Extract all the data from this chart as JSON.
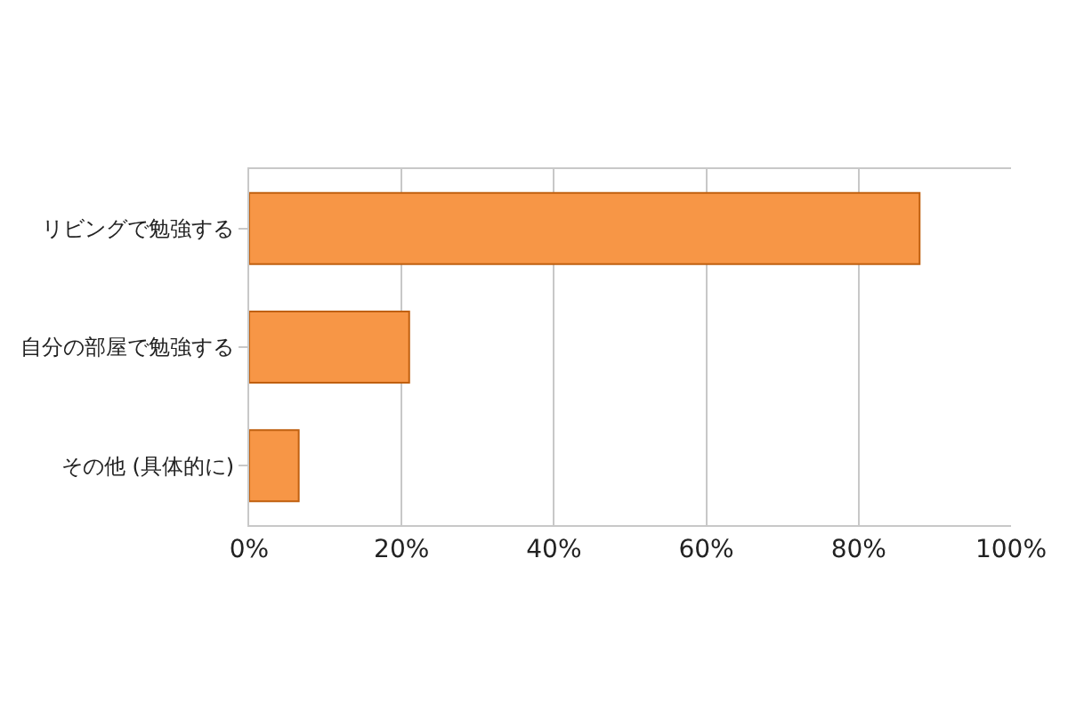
{
  "chart_data": {
    "type": "bar",
    "orientation": "horizontal",
    "categories": [
      "リビングで勉強する",
      "自分の部屋で勉強する",
      "その他 (具体的に)"
    ],
    "values": [
      88,
      21,
      6.5
    ],
    "color": "#f79646",
    "xlim": [
      0,
      100
    ],
    "xticks": [
      {
        "value": 0,
        "label": "0%"
      },
      {
        "value": 20,
        "label": "20%"
      },
      {
        "value": 40,
        "label": "40%"
      },
      {
        "value": 60,
        "label": "60%"
      },
      {
        "value": 80,
        "label": "80%"
      },
      {
        "value": 100,
        "label": "100%"
      }
    ],
    "grid": "x",
    "legend": false
  }
}
